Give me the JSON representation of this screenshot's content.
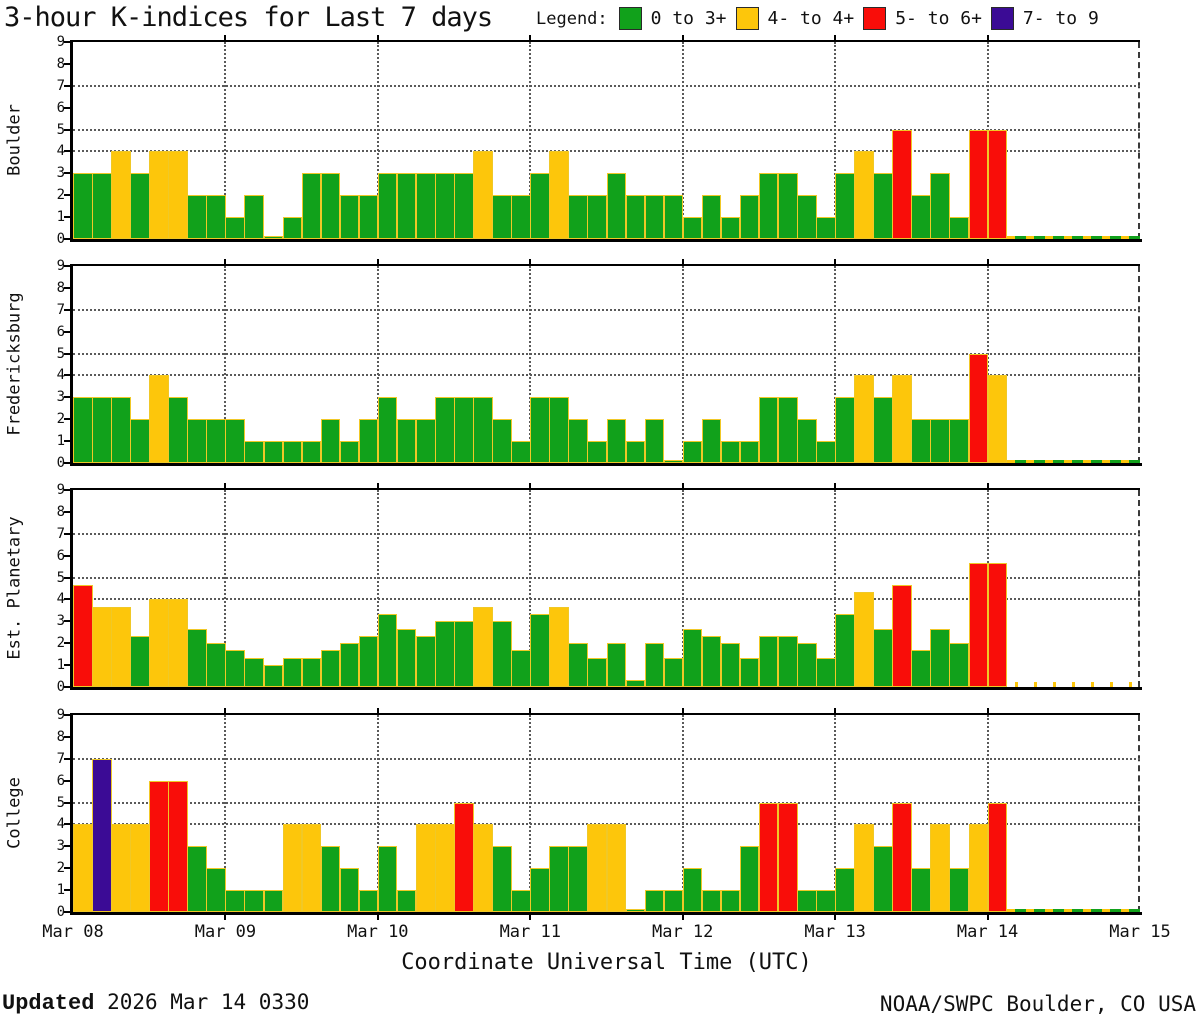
{
  "title": "3-hour K-indices for Last 7 days",
  "legend": {
    "label": "Legend:",
    "items": [
      {
        "range": "0 to 3+",
        "color": "#11a11b"
      },
      {
        "range": "4- to 4+",
        "color": "#fdc60b"
      },
      {
        "range": "5- to 6+",
        "color": "#f90d09"
      },
      {
        "range": "7- to 9",
        "color": "#3b0b95"
      }
    ]
  },
  "footer": {
    "updated_label": "Updated",
    "updated_value": "2026 Mar 14 0330",
    "source": "NOAA/SWPC Boulder, CO USA"
  },
  "chart_data": {
    "type": "bar",
    "title": "3-hour K-indices for Last 7 days",
    "xlabel": "Coordinate Universal Time (UTC)",
    "x_tick_labels": [
      "Mar 08",
      "Mar 09",
      "Mar 10",
      "Mar 11",
      "Mar 12",
      "Mar 13",
      "Mar 14",
      "Mar 15"
    ],
    "ylim": [
      0,
      9
    ],
    "y_ticks": [
      0,
      1,
      2,
      3,
      4,
      5,
      6,
      7,
      8,
      9
    ],
    "grid_y": [
      4,
      5,
      7
    ],
    "interval_hours": 3,
    "bars_per_day": 8,
    "color_rules": [
      {
        "min": 0.0,
        "color": "#11a11b",
        "label": "0 to 3+"
      },
      {
        "min": 3.67,
        "color": "#fdc60b",
        "label": "4- to 4+"
      },
      {
        "min": 4.67,
        "color": "#f90d09",
        "label": "5- to 6+"
      },
      {
        "min": 6.67,
        "color": "#3b0b95",
        "label": "7- to 9"
      }
    ],
    "panels": [
      {
        "station": "Boulder",
        "no_data_style": "strip",
        "days": [
          {
            "date": "Mar 08",
            "k": [
              3,
              3,
              4,
              3,
              4,
              4,
              2,
              2
            ]
          },
          {
            "date": "Mar 09",
            "k": [
              1,
              2,
              0,
              1,
              3,
              3,
              2,
              2
            ]
          },
          {
            "date": "Mar 10",
            "k": [
              3,
              3,
              3,
              3,
              3,
              4,
              2,
              2
            ]
          },
          {
            "date": "Mar 11",
            "k": [
              3,
              4,
              2,
              2,
              3,
              2,
              2,
              2
            ]
          },
          {
            "date": "Mar 12",
            "k": [
              1,
              2,
              1,
              2,
              3,
              3,
              2,
              1
            ]
          },
          {
            "date": "Mar 13",
            "k": [
              3,
              4,
              3,
              5,
              2,
              3,
              1,
              5
            ]
          },
          {
            "date": "Mar 14",
            "k": [
              5,
              null,
              null,
              null,
              null,
              null,
              null,
              null
            ]
          }
        ]
      },
      {
        "station": "Fredericksburg",
        "no_data_style": "strip",
        "days": [
          {
            "date": "Mar 08",
            "k": [
              3,
              3,
              3,
              2,
              4,
              3,
              2,
              2
            ]
          },
          {
            "date": "Mar 09",
            "k": [
              2,
              1,
              1,
              1,
              1,
              2,
              1,
              2
            ]
          },
          {
            "date": "Mar 10",
            "k": [
              3,
              2,
              2,
              3,
              3,
              3,
              2,
              1
            ]
          },
          {
            "date": "Mar 11",
            "k": [
              3,
              3,
              2,
              1,
              2,
              1,
              2,
              0
            ]
          },
          {
            "date": "Mar 12",
            "k": [
              1,
              2,
              1,
              1,
              3,
              3,
              2,
              1
            ]
          },
          {
            "date": "Mar 13",
            "k": [
              3,
              4,
              3,
              4,
              2,
              2,
              2,
              5
            ]
          },
          {
            "date": "Mar 14",
            "k": [
              4,
              null,
              null,
              null,
              null,
              null,
              null,
              null
            ]
          }
        ]
      },
      {
        "station": "Est. Planetary",
        "no_data_style": "ticks",
        "days": [
          {
            "date": "Mar 08",
            "k": [
              4.67,
              3.67,
              3.67,
              2.33,
              4.0,
              4.0,
              2.67,
              2.0
            ]
          },
          {
            "date": "Mar 09",
            "k": [
              1.67,
              1.33,
              1.0,
              1.33,
              1.33,
              1.67,
              2.0,
              2.33
            ]
          },
          {
            "date": "Mar 10",
            "k": [
              3.33,
              2.67,
              2.33,
              3.0,
              3.0,
              3.67,
              3.0,
              1.67
            ]
          },
          {
            "date": "Mar 11",
            "k": [
              3.33,
              3.67,
              2.0,
              1.33,
              2.0,
              0.33,
              2.0,
              1.33
            ]
          },
          {
            "date": "Mar 12",
            "k": [
              2.67,
              2.33,
              2.0,
              1.33,
              2.33,
              2.33,
              2.0,
              1.33
            ]
          },
          {
            "date": "Mar 13",
            "k": [
              3.33,
              4.33,
              2.67,
              4.67,
              1.67,
              2.67,
              2.0,
              5.67
            ]
          },
          {
            "date": "Mar 14",
            "k": [
              5.67,
              null,
              null,
              null,
              null,
              null,
              null,
              null
            ]
          }
        ]
      },
      {
        "station": "College",
        "no_data_style": "strip",
        "days": [
          {
            "date": "Mar 08",
            "k": [
              4,
              7,
              4,
              4,
              6,
              6,
              3,
              2
            ]
          },
          {
            "date": "Mar 09",
            "k": [
              1,
              1,
              1,
              4,
              4,
              3,
              2,
              1
            ]
          },
          {
            "date": "Mar 10",
            "k": [
              3,
              1,
              4,
              4,
              5,
              4,
              3,
              1
            ]
          },
          {
            "date": "Mar 11",
            "k": [
              2,
              3,
              3,
              4,
              4,
              0,
              1,
              1
            ]
          },
          {
            "date": "Mar 12",
            "k": [
              2,
              1,
              1,
              3,
              5,
              5,
              1,
              1
            ]
          },
          {
            "date": "Mar 13",
            "k": [
              2,
              4,
              3,
              5,
              2,
              4,
              2,
              4
            ]
          },
          {
            "date": "Mar 14",
            "k": [
              5,
              null,
              null,
              null,
              null,
              null,
              null,
              null
            ]
          }
        ]
      }
    ]
  }
}
